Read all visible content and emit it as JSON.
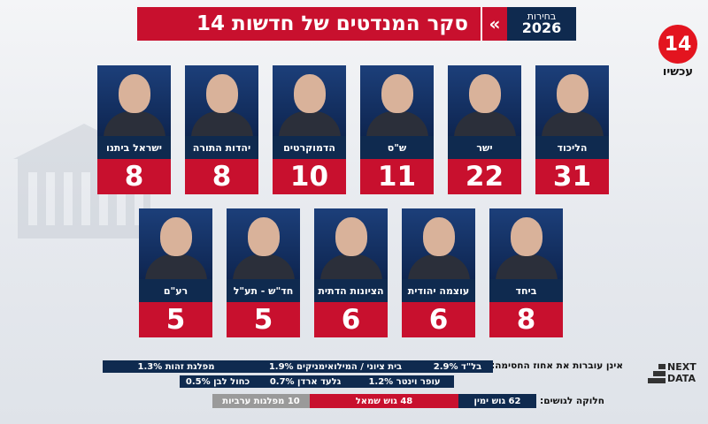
{
  "header": {
    "title": "סקר המנדטים של חדשות 14",
    "chevron": "«",
    "year_line1": "בחירות",
    "year_line2": "2026"
  },
  "channel": {
    "logo": "14",
    "sub": "עכשיו"
  },
  "chart_data": {
    "type": "bar",
    "title": "סקר המנדטים של חדשות 14",
    "categories": [
      "הליכוד",
      "ישר",
      "ש\"ס",
      "הדמוקרטים",
      "יהדות התורה",
      "ישראל ביתנו",
      "ביחד",
      "עוצמה יהודית",
      "הציונות הדתית",
      "חד\"ש - תע\"ל",
      "רע\"ם"
    ],
    "series": [
      {
        "values": [
          31,
          22,
          11,
          10,
          8,
          8,
          8,
          6,
          6,
          5,
          5
        ]
      }
    ]
  },
  "below_threshold": {
    "label": "אינן עוברות את אחוז החסימה:",
    "items": [
      "בל\"ד 2.9%",
      "בית ציוני / המילואימניקים 1.9%",
      "מפלגת זהות 1.3%",
      "עופר וינטר 1.2%",
      "גלעד ארדן 0.7%",
      "כחול לבן 0.5%"
    ]
  },
  "blocs": {
    "label": "חלוקה לגושים:",
    "right": "62 גוש ימין",
    "left": "48 גוש שמאל",
    "arab": "10 מפלגות ערביות",
    "right_color": "#0f2a4f",
    "left_color": "#c8102e",
    "arab_color": "#9a9a9a"
  },
  "branding": {
    "nextdata": "NEXT\nDATA"
  },
  "colors": {
    "accent_red": "#c8102e",
    "navy": "#0f2a4f"
  }
}
